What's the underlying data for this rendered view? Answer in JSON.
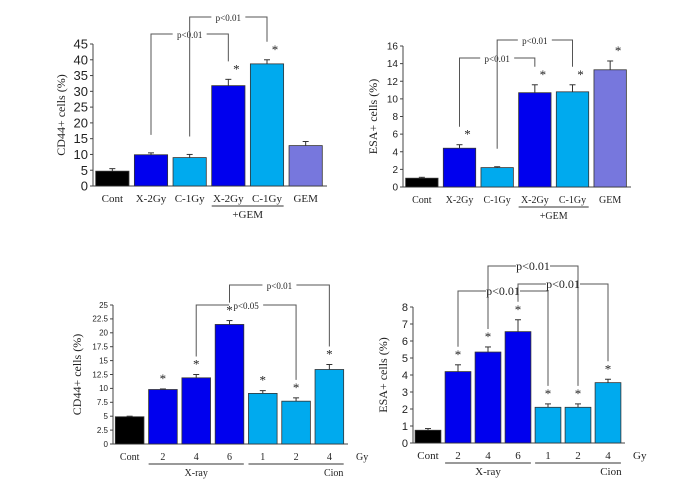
{
  "chart_data": [
    {
      "type": "bar",
      "ylabel": "CD44+ cells (%)",
      "ylim": [
        0,
        45
      ],
      "yticks": [
        "0",
        "5",
        "10",
        "15",
        "20",
        "25",
        "30",
        "35",
        "40",
        "45"
      ],
      "categories": [
        "Cont",
        "X-2Gy",
        "C-1Gy",
        "X-2Gy",
        "C-1Gy",
        "GEM"
      ],
      "values": [
        4.7,
        9.9,
        9.0,
        31.8,
        38.7,
        12.8
      ],
      "errors": [
        0.8,
        0.6,
        1.0,
        2.0,
        1.3,
        1.3
      ],
      "colors": [
        "#000000",
        "#0000ee",
        "#00aaee",
        "#0000ee",
        "#00aaee",
        "#7777dd"
      ],
      "significant": [
        false,
        false,
        false,
        true,
        true,
        false
      ],
      "groups": [
        {
          "label": "+GEM",
          "from": 3,
          "to": 4
        }
      ],
      "brackets": [
        {
          "from": 1,
          "to": 3,
          "label": "p<0.01"
        },
        {
          "from": 2,
          "to": 4,
          "label": "p<0.01"
        }
      ]
    },
    {
      "type": "bar",
      "ylabel": "ESA+ cells (%)",
      "ylim": [
        0,
        16
      ],
      "yticks": [
        "0",
        "2",
        "4",
        "6",
        "8",
        "10",
        "12",
        "14",
        "16"
      ],
      "categories": [
        "Cont",
        "X-2Gy",
        "C-1Gy",
        "X-2Gy",
        "C-1Gy",
        "GEM"
      ],
      "values": [
        1.0,
        4.4,
        2.2,
        10.7,
        10.8,
        13.3
      ],
      "errors": [
        0.1,
        0.4,
        0.1,
        0.9,
        0.8,
        1.0
      ],
      "colors": [
        "#000000",
        "#0000ee",
        "#00aaee",
        "#0000ee",
        "#00aaee",
        "#7777dd"
      ],
      "significant": [
        false,
        true,
        false,
        true,
        true,
        true
      ],
      "groups": [
        {
          "label": "+GEM",
          "from": 3,
          "to": 4
        }
      ],
      "brackets": [
        {
          "from": 1,
          "to": 3,
          "label": "p<0.01"
        },
        {
          "from": 2,
          "to": 4,
          "label": "p<0.01"
        }
      ]
    },
    {
      "type": "bar",
      "ylabel": "CD44+ cells (%)",
      "ylim": [
        0,
        25
      ],
      "yticks": [
        "0",
        "2.5",
        "5",
        "7.5",
        "10",
        "12.5",
        "15",
        "17.5",
        "20",
        "22.5",
        "25"
      ],
      "categories": [
        "Cont",
        "2",
        "4",
        "6",
        "1",
        "2",
        "4"
      ],
      "unit": "Gy",
      "values": [
        4.9,
        9.8,
        11.9,
        21.5,
        9.1,
        7.7,
        13.4
      ],
      "errors": [
        0.1,
        0.1,
        0.6,
        0.7,
        0.5,
        0.6,
        0.9
      ],
      "colors": [
        "#000000",
        "#0000ee",
        "#0000ee",
        "#0000ee",
        "#00aaee",
        "#00aaee",
        "#00aaee"
      ],
      "significant": [
        false,
        true,
        true,
        true,
        true,
        true,
        true
      ],
      "groups": [
        {
          "label": "X-ray",
          "from": 1,
          "to": 3
        },
        {
          "label": "Cion",
          "from": 4,
          "to": 6
        }
      ],
      "brackets": [
        {
          "from": 2,
          "to": 5,
          "label": "p<0.05"
        },
        {
          "from": 3,
          "to": 6,
          "label": "p<0.01"
        }
      ]
    },
    {
      "type": "bar",
      "ylabel": "ESA+ cells (%)",
      "ylim": [
        0,
        8
      ],
      "yticks": [
        "0",
        "1",
        "2",
        "3",
        "4",
        "5",
        "6",
        "7",
        "8"
      ],
      "categories": [
        "Cont",
        "2",
        "4",
        "6",
        "1",
        "2",
        "4"
      ],
      "unit": "Gy",
      "values": [
        0.75,
        4.2,
        5.35,
        6.55,
        2.1,
        2.1,
        3.55
      ],
      "errors": [
        0.1,
        0.4,
        0.3,
        0.7,
        0.2,
        0.2,
        0.2
      ],
      "colors": [
        "#000000",
        "#0000ee",
        "#0000ee",
        "#0000ee",
        "#00aaee",
        "#00aaee",
        "#00aaee"
      ],
      "significant": [
        false,
        true,
        true,
        true,
        true,
        true,
        true
      ],
      "groups": [
        {
          "label": "X-ray",
          "from": 1,
          "to": 3
        },
        {
          "label": "Cion",
          "from": 4,
          "to": 6
        }
      ],
      "brackets": [
        {
          "from": 1,
          "to": 4,
          "label": "p<0.01"
        },
        {
          "from": 2,
          "to": 5,
          "label": "p<0.01"
        },
        {
          "from": 3,
          "to": 6,
          "label": "p<0.01"
        }
      ]
    }
  ]
}
